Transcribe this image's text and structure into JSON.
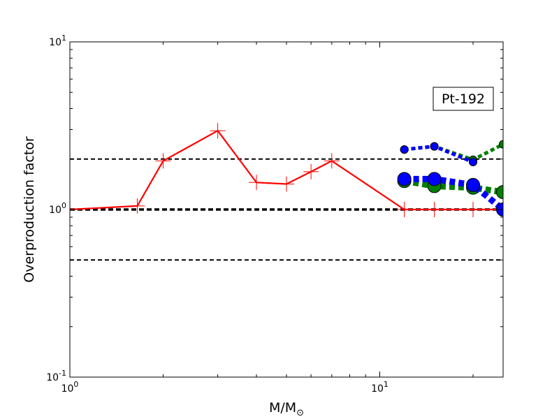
{
  "chart_data": {
    "type": "line",
    "title": "",
    "xlabel": "M/M",
    "xlabel_sub": "⊙",
    "ylabel": "Overproduction factor",
    "xscale": "log",
    "yscale": "log",
    "xlim": [
      1,
      25
    ],
    "ylim": [
      0.1,
      10
    ],
    "xticks": [
      {
        "value": 1,
        "base": "10",
        "exp": "0"
      },
      {
        "value": 10,
        "base": "10",
        "exp": "1"
      }
    ],
    "yticks": [
      {
        "value": 0.1,
        "base": "10",
        "exp": "-1"
      },
      {
        "value": 1,
        "base": "10",
        "exp": "0"
      },
      {
        "value": 10,
        "base": "10",
        "exp": "1"
      }
    ],
    "annotation": "Pt-192",
    "grid": false,
    "reference_lines": [
      {
        "y": 2,
        "style": "dashed",
        "color": "#000000"
      },
      {
        "y": 1,
        "style": "dashed-thick",
        "color": "#000000"
      },
      {
        "y": 0.5,
        "style": "dashed",
        "color": "#000000"
      }
    ],
    "series": [
      {
        "color": "#ff0000",
        "line": "solid",
        "marker": "plus",
        "x": [
          1,
          1.65,
          2,
          3,
          4,
          5,
          6,
          7,
          12,
          15,
          20,
          25
        ],
        "y": [
          1.0,
          1.05,
          1.95,
          2.95,
          1.45,
          1.42,
          1.68,
          1.95,
          1.0,
          1.0,
          1.0,
          1.0
        ]
      },
      {
        "color": "#008000",
        "line": "dashed",
        "marker": "circle-small",
        "x": [
          12,
          15,
          20,
          25
        ],
        "y": [
          2.28,
          2.38,
          1.98,
          2.45
        ]
      },
      {
        "color": "#0000ff",
        "line": "dashed",
        "marker": "circle-small",
        "x": [
          12,
          15,
          20
        ],
        "y": [
          2.28,
          2.38,
          1.92
        ]
      },
      {
        "color": "#008000",
        "line": "dashed-thick",
        "marker": "circle-large",
        "x": [
          12,
          15,
          20,
          25
        ],
        "y": [
          1.48,
          1.38,
          1.35,
          1.27
        ]
      },
      {
        "color": "#0000ff",
        "line": "dashed-thick",
        "marker": "circle-large",
        "x": [
          12,
          15,
          20,
          25
        ],
        "y": [
          1.52,
          1.52,
          1.4,
          1.0
        ]
      }
    ]
  }
}
